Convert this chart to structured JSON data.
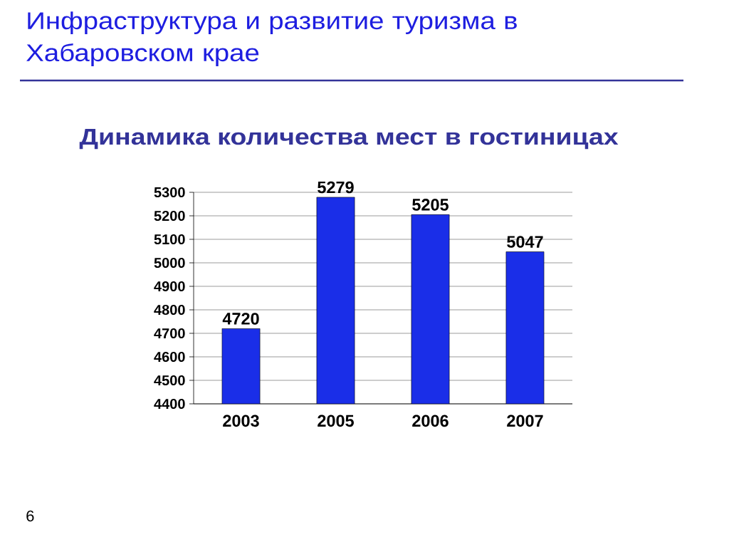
{
  "chart_data": {
    "type": "bar",
    "title": "Инфраструктура и развитие туризма в Хабаровском крае",
    "subtitle": "Динамика количества  мест в гостиницах",
    "categories": [
      "2003",
      "2005",
      "2006",
      "2007"
    ],
    "values": [
      4720,
      5279,
      5205,
      5047
    ],
    "color": "#1a2ee8",
    "ylim": [
      4400,
      5300
    ],
    "yticks": [
      4400,
      4500,
      4600,
      4700,
      4800,
      4900,
      5000,
      5100,
      5200,
      5300
    ],
    "grid": "y",
    "data_labels": true,
    "annotations": [
      "6"
    ]
  }
}
